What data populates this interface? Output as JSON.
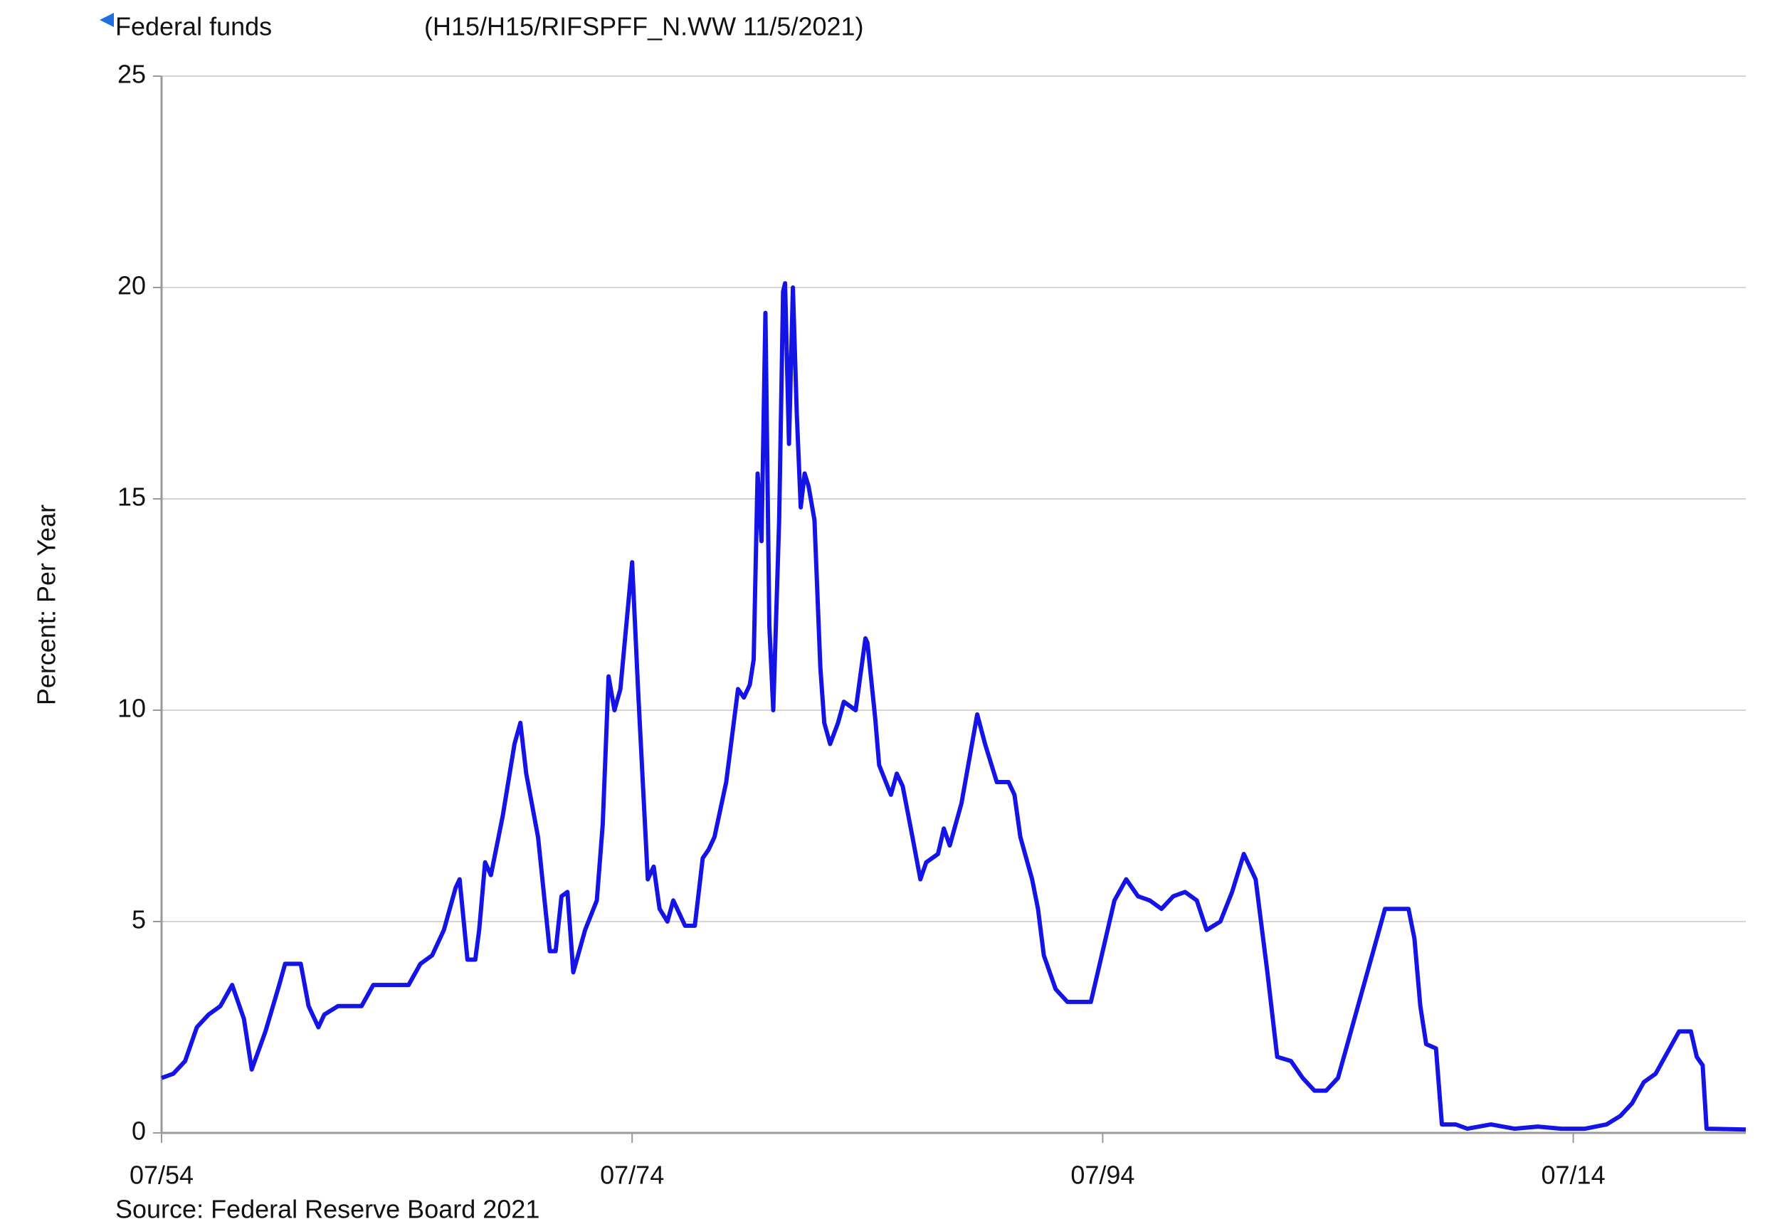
{
  "chart_data": {
    "type": "line",
    "legend_label": "Federal funds",
    "subtitle": "(H15/H15/RIFSPFF_N.WW 11/5/2021)",
    "ylabel": "Percent: Per Year",
    "source": "Source: Federal Reserve Board 2021",
    "grid": true,
    "xlim": [
      "1954-07",
      "2021-11"
    ],
    "xticks": [
      {
        "value": "1954-07",
        "label": "07/54"
      },
      {
        "value": "1974-07",
        "label": "07/74"
      },
      {
        "value": "1994-07",
        "label": "07/94"
      },
      {
        "value": "2014-07",
        "label": "07/14"
      }
    ],
    "ylim": [
      0,
      25
    ],
    "yticks": [
      0,
      5,
      10,
      15,
      20,
      25
    ],
    "x": [
      "1954-07",
      "1955-01",
      "1955-07",
      "1956-01",
      "1956-07",
      "1957-01",
      "1957-07",
      "1958-01",
      "1958-05",
      "1958-12",
      "1959-07",
      "1959-10",
      "1960-06",
      "1960-10",
      "1961-03",
      "1961-06",
      "1962-01",
      "1963-01",
      "1963-07",
      "1965-01",
      "1965-07",
      "1966-01",
      "1966-07",
      "1967-01",
      "1967-03",
      "1967-07",
      "1967-11",
      "1968-01",
      "1968-04",
      "1968-07",
      "1969-01",
      "1969-07",
      "1969-10",
      "1970-01",
      "1970-07",
      "1971-01",
      "1971-04",
      "1971-07",
      "1971-10",
      "1972-01",
      "1972-07",
      "1973-01",
      "1973-04",
      "1973-07",
      "1973-10",
      "1974-01",
      "1974-07",
      "1974-10",
      "1975-03",
      "1975-06",
      "1975-09",
      "1976-01",
      "1976-04",
      "1976-10",
      "1977-03",
      "1977-07",
      "1977-10",
      "1978-01",
      "1978-07",
      "1979-01",
      "1979-04",
      "1979-07",
      "1979-09",
      "1979-11",
      "1980-01",
      "1980-03",
      "1980-05",
      "1980-07",
      "1980-10",
      "1980-12",
      "1981-01",
      "1981-03",
      "1981-05",
      "1981-07",
      "1981-09",
      "1981-11",
      "1982-01",
      "1982-04",
      "1982-07",
      "1982-09",
      "1982-12",
      "1983-04",
      "1983-07",
      "1984-01",
      "1984-06",
      "1984-07",
      "1984-11",
      "1985-01",
      "1985-07",
      "1985-10",
      "1986-01",
      "1986-06",
      "1986-10",
      "1987-01",
      "1987-07",
      "1987-10",
      "1988-01",
      "1988-07",
      "1989-03",
      "1989-07",
      "1990-01",
      "1990-07",
      "1990-10",
      "1991-01",
      "1991-07",
      "1991-10",
      "1992-01",
      "1992-07",
      "1993-01",
      "1993-07",
      "1994-01",
      "1994-07",
      "1995-01",
      "1995-07",
      "1996-01",
      "1996-07",
      "1997-01",
      "1997-07",
      "1998-01",
      "1998-07",
      "1998-12",
      "1999-07",
      "2000-01",
      "2000-07",
      "2001-01",
      "2001-07",
      "2001-12",
      "2002-07",
      "2003-01",
      "2003-07",
      "2004-01",
      "2004-07",
      "2005-01",
      "2005-07",
      "2006-01",
      "2006-07",
      "2007-01",
      "2007-07",
      "2007-10",
      "2008-01",
      "2008-04",
      "2008-09",
      "2008-12",
      "2009-07",
      "2010-01",
      "2011-01",
      "2012-01",
      "2013-01",
      "2014-01",
      "2015-01",
      "2015-12",
      "2016-07",
      "2017-01",
      "2017-07",
      "2018-01",
      "2018-07",
      "2019-01",
      "2019-07",
      "2019-10",
      "2020-01",
      "2020-03",
      "2021-11"
    ],
    "series": [
      {
        "name": "Federal funds",
        "color": "#1414e6",
        "values": [
          1.3,
          1.4,
          1.7,
          2.5,
          2.8,
          3.0,
          3.5,
          2.7,
          1.5,
          2.4,
          3.5,
          4.0,
          4.0,
          3.0,
          2.5,
          2.8,
          3.0,
          3.0,
          3.5,
          3.5,
          4.0,
          4.2,
          4.8,
          5.8,
          6.0,
          4.1,
          4.1,
          4.8,
          6.4,
          6.1,
          7.5,
          9.2,
          9.7,
          8.5,
          7.0,
          4.3,
          4.3,
          5.6,
          5.7,
          3.8,
          4.8,
          5.5,
          7.3,
          10.8,
          10.0,
          10.5,
          13.5,
          10.5,
          6.0,
          6.3,
          5.3,
          5.0,
          5.5,
          4.9,
          4.9,
          6.5,
          6.7,
          7.0,
          8.3,
          10.5,
          10.3,
          10.6,
          11.2,
          15.6,
          14.0,
          19.4,
          12.0,
          10.0,
          14.5,
          19.9,
          20.1,
          16.3,
          20.0,
          17.0,
          14.8,
          15.6,
          15.3,
          14.5,
          11.0,
          9.7,
          9.2,
          9.7,
          10.2,
          10.0,
          11.7,
          11.6,
          9.8,
          8.7,
          8.0,
          8.5,
          8.2,
          7.0,
          6.0,
          6.4,
          6.6,
          7.2,
          6.8,
          7.8,
          9.9,
          9.2,
          8.3,
          8.3,
          8.0,
          7.0,
          6.0,
          5.3,
          4.2,
          3.4,
          3.1,
          3.1,
          3.1,
          4.3,
          5.5,
          6.0,
          5.6,
          5.5,
          5.3,
          5.6,
          5.7,
          5.5,
          4.8,
          5.0,
          5.7,
          6.6,
          6.0,
          3.8,
          1.8,
          1.7,
          1.3,
          1.0,
          1.0,
          1.3,
          2.3,
          3.3,
          4.3,
          5.3,
          5.3,
          5.3,
          4.6,
          3.0,
          2.1,
          2.0,
          0.2,
          0.2,
          0.1,
          0.2,
          0.1,
          0.15,
          0.1,
          0.1,
          0.2,
          0.4,
          0.7,
          1.2,
          1.4,
          1.9,
          2.4,
          2.4,
          1.8,
          1.6,
          0.1,
          0.08
        ]
      }
    ]
  }
}
